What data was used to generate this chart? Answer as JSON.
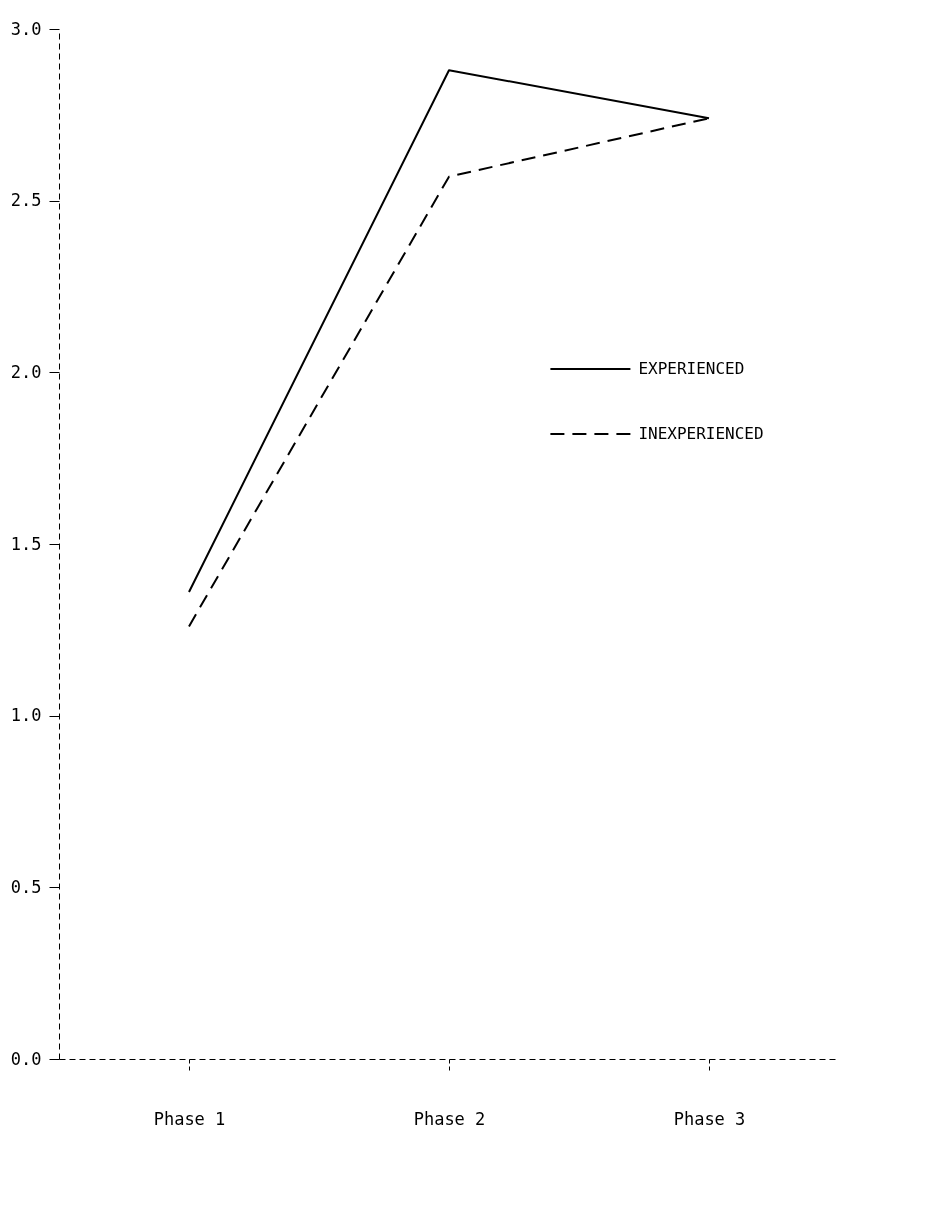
{
  "chart_data": {
    "type": "line",
    "categories": [
      "Phase 1",
      "Phase 2",
      "Phase 3"
    ],
    "series": [
      {
        "name": "EXPERIENCED",
        "color": "#000000",
        "line_style": "solid",
        "values": [
          1.36,
          2.88,
          2.74
        ]
      },
      {
        "name": "INEXPERIENCED",
        "color": "#000000",
        "line_style": "dashed",
        "values": [
          1.26,
          2.57,
          2.74
        ]
      }
    ],
    "ylim": [
      0,
      3
    ],
    "yticks": [
      {
        "value": 0,
        "label": "0.0"
      },
      0.5,
      {
        "value": 1,
        "label": "1.0"
      },
      1.5,
      {
        "value": 2,
        "label": "2.0"
      },
      2.5,
      {
        "value": 3,
        "label": "3.0"
      }
    ],
    "grid": false,
    "legend": "right",
    "marker": "none"
  }
}
